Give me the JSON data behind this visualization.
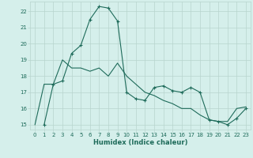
{
  "xlabel": "Humidex (Indice chaleur)",
  "xlim": [
    -0.5,
    23.5
  ],
  "ylim": [
    14.7,
    22.6
  ],
  "yticks": [
    15,
    16,
    17,
    18,
    19,
    20,
    21,
    22
  ],
  "xticks": [
    0,
    1,
    2,
    3,
    4,
    5,
    6,
    7,
    8,
    9,
    10,
    11,
    12,
    13,
    14,
    15,
    16,
    17,
    18,
    19,
    20,
    21,
    22,
    23
  ],
  "bg_color": "#d5efeb",
  "line_color": "#1e6b5a",
  "grid_color": "#b8d4ce",
  "line1_x": [
    1,
    2,
    3,
    4,
    5,
    6,
    7,
    8,
    9,
    10,
    11,
    12,
    13,
    14,
    15,
    16,
    17,
    18,
    19,
    20,
    21,
    22,
    23
  ],
  "line1_y": [
    15.0,
    17.5,
    17.7,
    19.4,
    19.9,
    21.5,
    22.3,
    22.2,
    21.4,
    17.0,
    16.6,
    16.5,
    17.3,
    17.4,
    17.1,
    17.0,
    17.3,
    17.0,
    15.3,
    15.2,
    15.0,
    15.4,
    16.0
  ],
  "line2_x": [
    0,
    1,
    2,
    3,
    4,
    5,
    6,
    7,
    8,
    9,
    10,
    11,
    12,
    13,
    14,
    15,
    16,
    17,
    18,
    19,
    20,
    21,
    22,
    23
  ],
  "line2_y": [
    15.0,
    17.5,
    17.5,
    19.0,
    18.5,
    18.5,
    18.3,
    18.5,
    18.0,
    18.8,
    18.0,
    17.5,
    17.0,
    16.8,
    16.5,
    16.3,
    16.0,
    16.0,
    15.6,
    15.3,
    15.2,
    15.2,
    16.0,
    16.1
  ]
}
